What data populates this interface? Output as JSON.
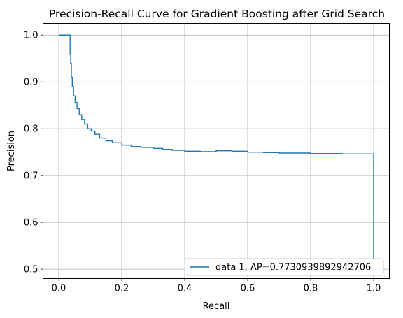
{
  "chart_data": {
    "type": "line",
    "title": "Precision-Recall Curve for Gradient Boosting after Grid Search",
    "xlabel": "Recall",
    "ylabel": "Precision",
    "xlim": [
      -0.05,
      1.05
    ],
    "ylim": [
      0.48,
      1.025
    ],
    "xticks": [
      0.0,
      0.2,
      0.4,
      0.6,
      0.8,
      1.0
    ],
    "xtick_labels": [
      "0.0",
      "0.2",
      "0.4",
      "0.6",
      "0.8",
      "1.0"
    ],
    "yticks": [
      0.5,
      0.6,
      0.7,
      0.8,
      0.9,
      1.0
    ],
    "ytick_labels": [
      "0.5",
      "0.6",
      "0.7",
      "0.8",
      "0.9",
      "1.0"
    ],
    "grid": true,
    "legend_position": "lower right",
    "series": [
      {
        "name": "data 1, AP=0.7730939892942706",
        "color": "#1f77b4",
        "step": true,
        "x": [
          0.0,
          0.036,
          0.038,
          0.04,
          0.043,
          0.047,
          0.052,
          0.058,
          0.065,
          0.073,
          0.082,
          0.092,
          0.103,
          0.115,
          0.13,
          0.15,
          0.17,
          0.2,
          0.23,
          0.26,
          0.3,
          0.33,
          0.36,
          0.4,
          0.45,
          0.5,
          0.55,
          0.6,
          0.65,
          0.7,
          0.8,
          0.9,
          1.0,
          1.0
        ],
        "y": [
          1.0,
          1.0,
          0.96,
          0.94,
          0.91,
          0.89,
          0.87,
          0.856,
          0.843,
          0.83,
          0.82,
          0.81,
          0.8,
          0.795,
          0.788,
          0.78,
          0.774,
          0.77,
          0.765,
          0.762,
          0.76,
          0.758,
          0.756,
          0.754,
          0.752,
          0.751,
          0.753,
          0.752,
          0.75,
          0.749,
          0.748,
          0.747,
          0.746,
          0.52
        ]
      }
    ]
  }
}
